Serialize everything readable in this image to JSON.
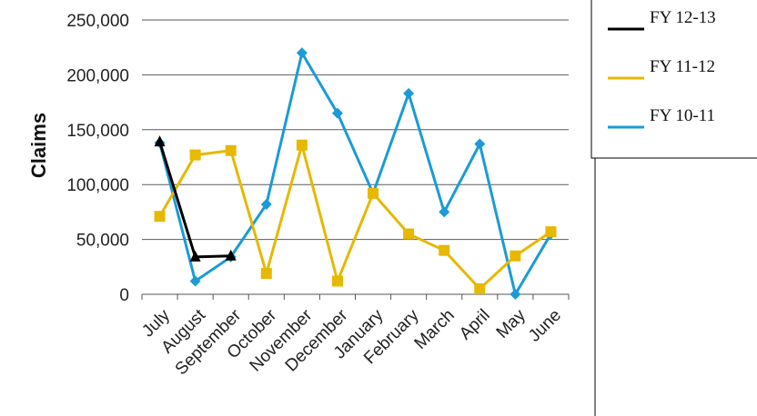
{
  "chart_data": {
    "type": "line",
    "title": "",
    "xlabel": "",
    "ylabel": "Claims",
    "categories": [
      "July",
      "August",
      "September",
      "October",
      "November",
      "December",
      "January",
      "February",
      "March",
      "April",
      "May",
      "June"
    ],
    "y_ticks": [
      "0",
      "50,000",
      "100,000",
      "150,000",
      "200,000",
      "250,000"
    ],
    "ylim": [
      0,
      250000
    ],
    "grid": "horizontal",
    "legend_position": "right",
    "series": [
      {
        "name": "FY 12-13",
        "color": "#000000",
        "marker": "triangle",
        "values": [
          139000,
          34000,
          35000,
          null,
          null,
          null,
          null,
          null,
          null,
          null,
          null,
          null
        ]
      },
      {
        "name": "FY 11-12",
        "color": "#e6b800",
        "marker": "square",
        "values": [
          71000,
          127000,
          131000,
          19000,
          136000,
          12000,
          92000,
          55000,
          40000,
          5000,
          35000,
          57000
        ]
      },
      {
        "name": "FY 10-11",
        "color": "#1a9bd7",
        "marker": "diamond",
        "values": [
          138000,
          12000,
          34000,
          82000,
          220000,
          165000,
          92000,
          183000,
          75000,
          137000,
          0,
          55000
        ]
      }
    ]
  }
}
